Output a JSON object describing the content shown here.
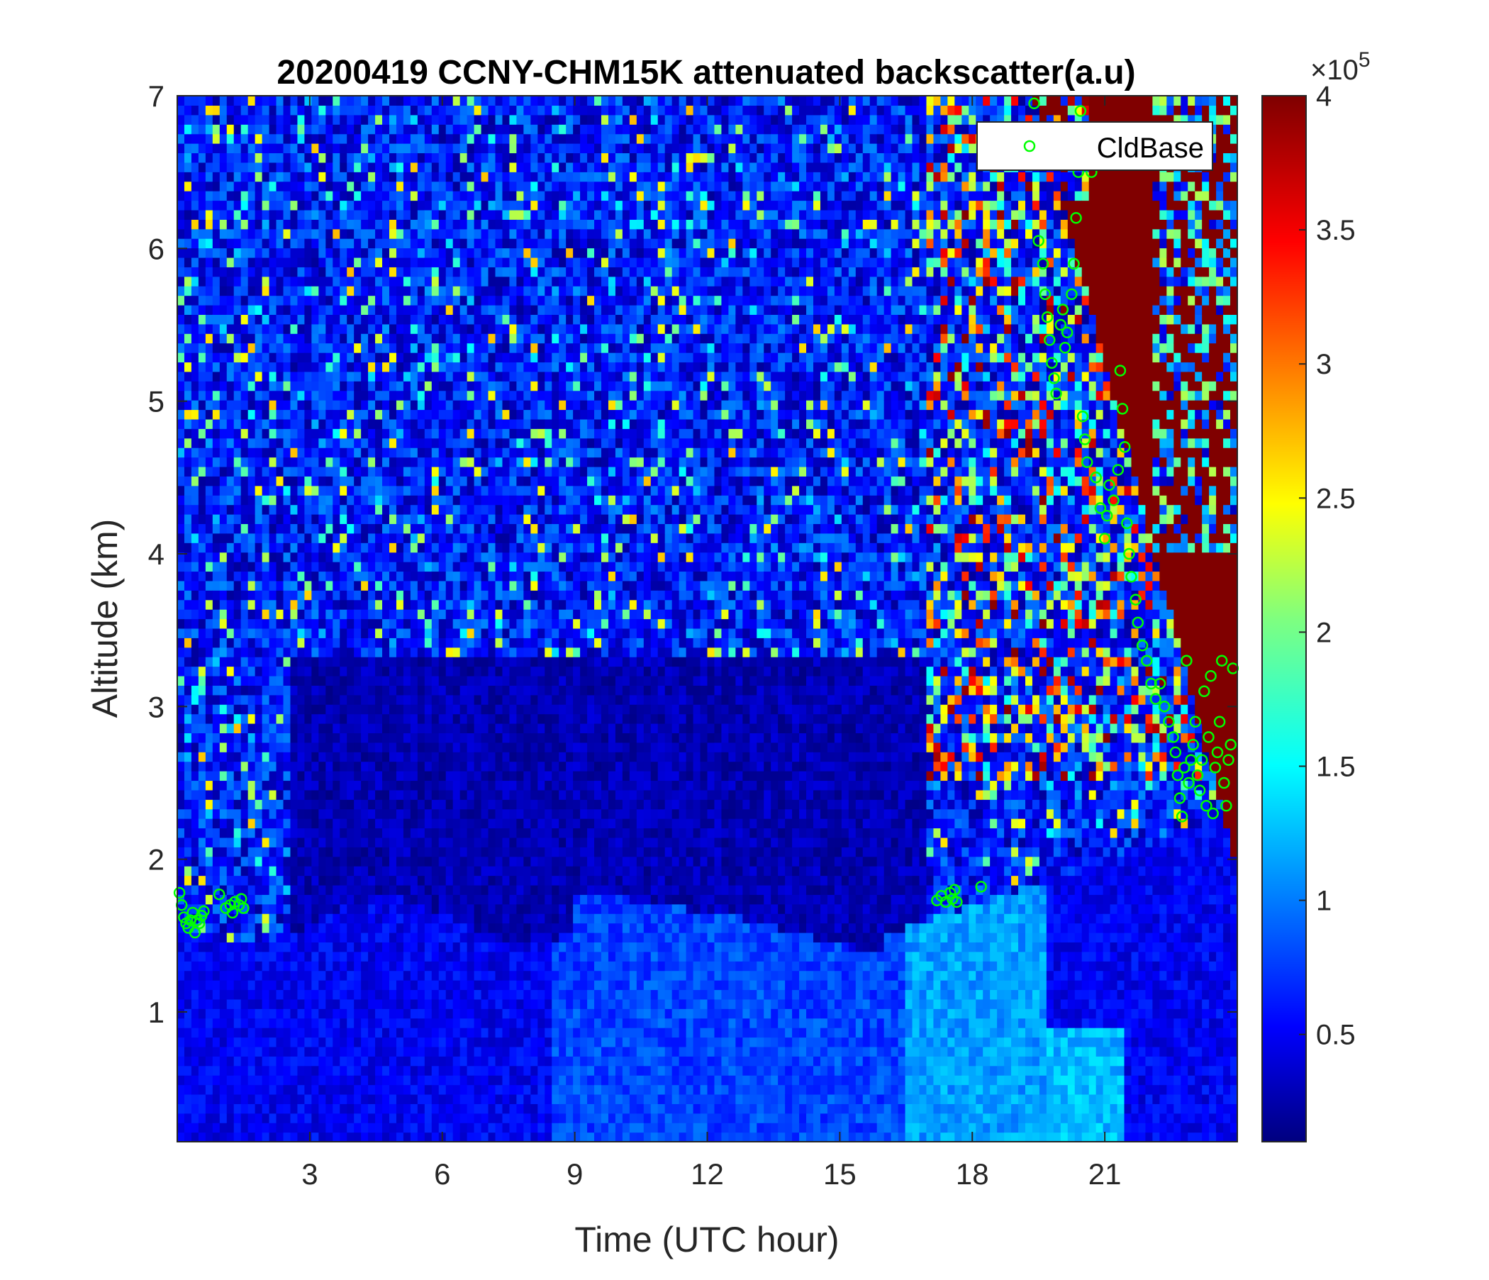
{
  "chart_data": {
    "type": "heatmap",
    "title": "20200419 CCNY-CHM15K attenuated backscatter(a.u)",
    "xlabel": "Time (UTC hour)",
    "ylabel": "Altitude (km)",
    "xlim": [
      0,
      24
    ],
    "ylim": [
      0.15,
      7
    ],
    "x_ticks": [
      "3",
      "6",
      "9",
      "12",
      "15",
      "18",
      "21"
    ],
    "y_ticks": [
      "1",
      "2",
      "3",
      "4",
      "5",
      "6",
      "7"
    ],
    "colorbar": {
      "colormap": "jet",
      "range": [
        0.1,
        4
      ],
      "multiplier": "×10",
      "exponent": "5",
      "ticks": [
        "0.5",
        "1",
        "1.5",
        "2",
        "2.5",
        "3",
        "3.5",
        "4"
      ]
    },
    "legend": {
      "position": "top-right",
      "label": "CldBase",
      "color": "#00ff00"
    },
    "field_description": [
      {
        "x_range": [
          0,
          24
        ],
        "alt_range": [
          0.15,
          1.8
        ],
        "value": 0.6
      },
      {
        "x_range": [
          9,
          18
        ],
        "alt_range": [
          0.15,
          1.8
        ],
        "value": 1.0
      },
      {
        "x_range": [
          3,
          16
        ],
        "alt_range": [
          1.8,
          3.5
        ],
        "value": 0.15
      },
      {
        "x_range": [
          19.5,
          24
        ],
        "alt_range": [
          2,
          7
        ],
        "value": 4
      }
    ],
    "series": [
      {
        "name": "CldBase",
        "marker": "circle",
        "points": [
          [
            0.05,
            1.78
          ],
          [
            0.1,
            1.7
          ],
          [
            0.15,
            1.62
          ],
          [
            0.2,
            1.58
          ],
          [
            0.25,
            1.55
          ],
          [
            0.3,
            1.6
          ],
          [
            0.35,
            1.65
          ],
          [
            0.4,
            1.52
          ],
          [
            0.45,
            1.6
          ],
          [
            0.5,
            1.58
          ],
          [
            0.55,
            1.63
          ],
          [
            0.6,
            1.66
          ],
          [
            0.95,
            1.77
          ],
          [
            1.1,
            1.68
          ],
          [
            1.2,
            1.7
          ],
          [
            1.25,
            1.65
          ],
          [
            1.3,
            1.72
          ],
          [
            1.4,
            1.7
          ],
          [
            1.45,
            1.74
          ],
          [
            1.5,
            1.68
          ],
          [
            17.2,
            1.73
          ],
          [
            17.3,
            1.76
          ],
          [
            17.4,
            1.72
          ],
          [
            17.5,
            1.78
          ],
          [
            17.55,
            1.74
          ],
          [
            17.6,
            1.8
          ],
          [
            17.65,
            1.72
          ],
          [
            18.2,
            1.82
          ],
          [
            19.4,
            6.95
          ],
          [
            19.5,
            6.05
          ],
          [
            19.6,
            5.9
          ],
          [
            19.65,
            5.7
          ],
          [
            19.7,
            5.55
          ],
          [
            19.75,
            5.4
          ],
          [
            19.8,
            5.25
          ],
          [
            19.85,
            5.15
          ],
          [
            19.9,
            5.05
          ],
          [
            20.0,
            5.5
          ],
          [
            20.05,
            5.6
          ],
          [
            20.1,
            5.35
          ],
          [
            20.15,
            5.45
          ],
          [
            20.25,
            5.7
          ],
          [
            20.3,
            5.9
          ],
          [
            20.35,
            6.2
          ],
          [
            20.4,
            6.5
          ],
          [
            20.45,
            6.9
          ],
          [
            20.5,
            4.9
          ],
          [
            20.55,
            4.75
          ],
          [
            20.6,
            4.6
          ],
          [
            20.7,
            6.5
          ],
          [
            20.8,
            4.5
          ],
          [
            20.9,
            4.3
          ],
          [
            21.0,
            4.1
          ],
          [
            21.05,
            4.25
          ],
          [
            21.1,
            4.45
          ],
          [
            21.2,
            4.35
          ],
          [
            21.3,
            4.55
          ],
          [
            21.35,
            5.2
          ],
          [
            21.4,
            4.95
          ],
          [
            21.45,
            4.7
          ],
          [
            21.5,
            4.2
          ],
          [
            21.55,
            4.0
          ],
          [
            21.6,
            3.85
          ],
          [
            21.7,
            3.7
          ],
          [
            21.75,
            3.55
          ],
          [
            21.85,
            3.4
          ],
          [
            21.95,
            3.3
          ],
          [
            22.05,
            3.15
          ],
          [
            22.15,
            3.05
          ],
          [
            22.25,
            3.15
          ],
          [
            22.35,
            3.0
          ],
          [
            22.45,
            2.9
          ],
          [
            22.55,
            2.8
          ],
          [
            22.6,
            2.7
          ],
          [
            22.65,
            2.55
          ],
          [
            22.7,
            2.4
          ],
          [
            22.75,
            2.28
          ],
          [
            22.8,
            2.6
          ],
          [
            22.85,
            3.3
          ],
          [
            22.9,
            2.5
          ],
          [
            22.95,
            2.65
          ],
          [
            23.0,
            2.75
          ],
          [
            23.05,
            2.9
          ],
          [
            23.1,
            2.55
          ],
          [
            23.15,
            2.45
          ],
          [
            23.2,
            2.65
          ],
          [
            23.25,
            3.1
          ],
          [
            23.3,
            2.35
          ],
          [
            23.35,
            2.8
          ],
          [
            23.4,
            3.2
          ],
          [
            23.45,
            2.3
          ],
          [
            23.5,
            2.6
          ],
          [
            23.55,
            2.7
          ],
          [
            23.6,
            2.9
          ],
          [
            23.65,
            3.3
          ],
          [
            23.7,
            2.5
          ],
          [
            23.75,
            2.35
          ],
          [
            23.8,
            2.65
          ],
          [
            23.85,
            2.75
          ],
          [
            23.9,
            3.25
          ]
        ]
      }
    ]
  }
}
